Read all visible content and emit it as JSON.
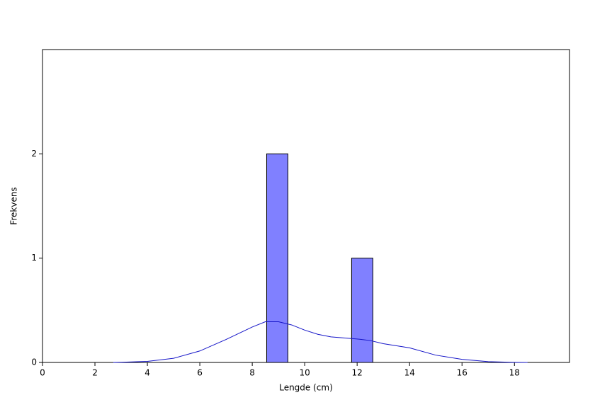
{
  "chart_data": {
    "type": "histogram",
    "xlabel": "Lengde (cm)",
    "ylabel": "Frekvens",
    "bins": [
      8.55,
      9.36,
      10.17,
      10.98,
      11.79,
      12.6
    ],
    "values": [
      2,
      0,
      0,
      0,
      1
    ],
    "color": "#8080ff",
    "curve": {
      "color": "#1414c8",
      "x": [
        2.7,
        3,
        4,
        5,
        6,
        7,
        8,
        8.5,
        9,
        9.5,
        10,
        10.5,
        11,
        11.5,
        12,
        12.5,
        13,
        14,
        15,
        16,
        17,
        18,
        18.5
      ],
      "values": [
        0,
        0.002,
        0.01,
        0.04,
        0.11,
        0.22,
        0.34,
        0.39,
        0.39,
        0.36,
        0.31,
        0.27,
        0.245,
        0.235,
        0.225,
        0.21,
        0.18,
        0.14,
        0.07,
        0.03,
        0.008,
        0.001,
        0
      ]
    },
    "xlim": [
      0,
      20.1
    ],
    "ylim": [
      0,
      3
    ],
    "xticks": [
      0,
      2,
      4,
      6,
      8,
      10,
      12,
      14,
      16,
      18
    ],
    "yticks": [
      0,
      1,
      2
    ]
  }
}
